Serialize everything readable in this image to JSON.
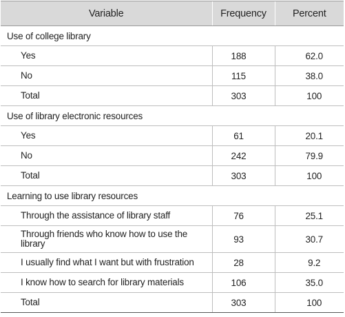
{
  "table": {
    "headers": [
      "Variable",
      "Frequency",
      "Percent"
    ],
    "sections": [
      {
        "title": "Use of college library",
        "rows": [
          {
            "label": "Yes",
            "frequency": "188",
            "percent": "62.0"
          },
          {
            "label": "No",
            "frequency": "115",
            "percent": "38.0"
          },
          {
            "label": "Total",
            "frequency": "303",
            "percent": "100"
          }
        ]
      },
      {
        "title": "Use of library electronic resources",
        "rows": [
          {
            "label": "Yes",
            "frequency": "61",
            "percent": "20.1"
          },
          {
            "label": "No",
            "frequency": "242",
            "percent": "79.9"
          },
          {
            "label": "Total",
            "frequency": "303",
            "percent": "100"
          }
        ]
      },
      {
        "title": "Learning to use library resources",
        "rows": [
          {
            "label": "Through the assistance of library staff",
            "frequency": "76",
            "percent": "25.1"
          },
          {
            "label": "Through friends who know how to use the library",
            "frequency": "93",
            "percent": "30.7"
          },
          {
            "label": "I usually find what I want but with frustration",
            "frequency": "28",
            "percent": "9.2"
          },
          {
            "label": "I know how to search for library materials",
            "frequency": "106",
            "percent": "35.0"
          },
          {
            "label": "Total",
            "frequency": "303",
            "percent": "100"
          }
        ]
      }
    ]
  }
}
